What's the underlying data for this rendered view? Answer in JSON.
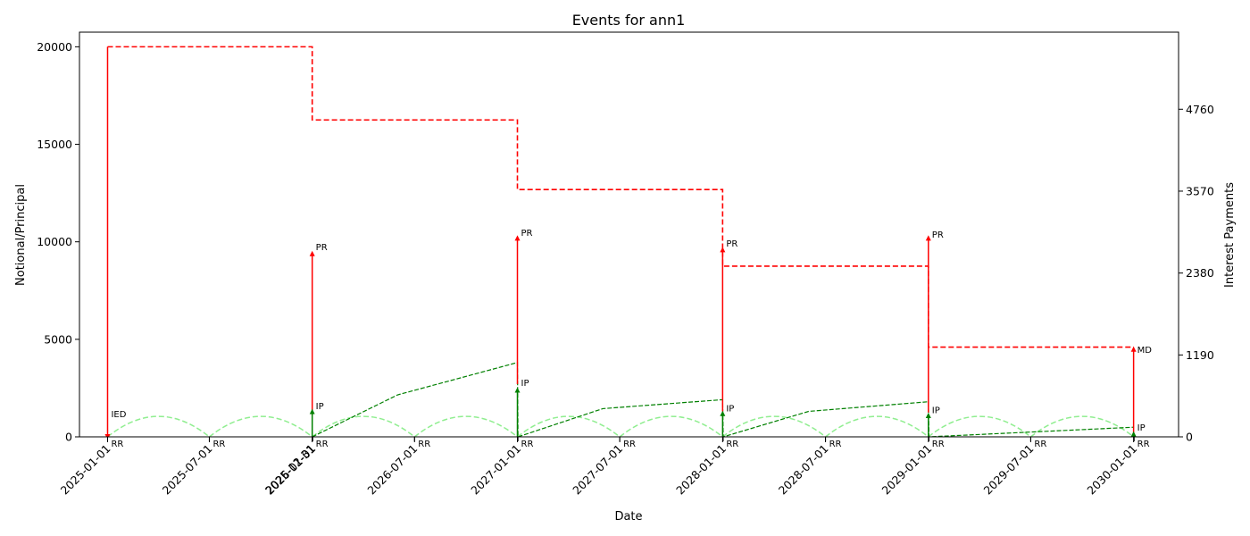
{
  "chart_data": {
    "type": "line",
    "title": "Events for ann1",
    "xlabel": "Date",
    "ylabel": "Notional/Principal",
    "y2label": "Interest Payments",
    "xlim": [
      "2024-11-12",
      "2030-03-21"
    ],
    "ylim": [
      0,
      20750
    ],
    "y2lim": [
      0,
      5880
    ],
    "y_ticks": [
      0,
      5000,
      10000,
      15000,
      20000
    ],
    "y2_ticks": [
      0,
      1190,
      2380,
      3570,
      4760
    ],
    "x_ticks": [
      "2025-01-01",
      "2025-07-01",
      "2025-12-31",
      "2026-01-01",
      "2026-07-01",
      "2027-01-01",
      "2027-07-01",
      "2028-01-01",
      "2028-07-01",
      "2029-01-01",
      "2029-07-01",
      "2030-01-01"
    ],
    "grid": false,
    "colors": {
      "notional": "#ff0000",
      "interest": "#008000",
      "rate_reset": "#90ee90"
    },
    "series": [
      {
        "key": "notional",
        "style": "dashed step",
        "points": [
          {
            "x": "2025-01-01",
            "y": 20000
          },
          {
            "x": "2025-12-31",
            "y": 16250
          },
          {
            "x": "2026-12-31",
            "y": 12680
          },
          {
            "x": "2027-12-31",
            "y": 8750
          },
          {
            "x": "2028-12-31",
            "y": 4600
          },
          {
            "x": "2029-12-31",
            "y": 4600
          }
        ]
      },
      {
        "key": "interest",
        "style": "dashed",
        "axis": "y2",
        "points": [
          {
            "x": "2025-12-31",
            "y": 0
          },
          {
            "x": "2026-06-01",
            "y": 610
          },
          {
            "x": "2026-12-31",
            "y": 1080
          },
          {
            "x": "2027-01-01",
            "y": 0
          },
          {
            "x": "2027-06-01",
            "y": 410
          },
          {
            "x": "2027-12-31",
            "y": 540
          },
          {
            "x": "2028-01-01",
            "y": 0
          },
          {
            "x": "2028-06-01",
            "y": 370
          },
          {
            "x": "2028-12-31",
            "y": 510
          },
          {
            "x": "2029-01-01",
            "y": 0
          },
          {
            "x": "2029-12-31",
            "y": 140
          }
        ]
      }
    ],
    "rate_reset_dates": [
      "2025-01-01",
      "2025-07-01",
      "2025-12-31",
      "2026-07-01",
      "2026-12-31",
      "2027-07-01",
      "2027-12-31",
      "2028-07-01",
      "2028-12-31",
      "2029-07-01",
      "2029-12-31"
    ],
    "rate_reset_arc_peak": 1050,
    "events": [
      {
        "type": "IED",
        "date": "2025-01-01",
        "from": 20000,
        "to": 0,
        "color": "#ff0000",
        "label": "IED",
        "label_y": 1200
      },
      {
        "type": "PR",
        "date": "2025-12-31",
        "from": 1100,
        "to": 9400,
        "color": "#ff0000",
        "label": "PR",
        "label_y": 9750
      },
      {
        "type": "IP",
        "date": "2025-12-31",
        "from": 0,
        "to": 1300,
        "color": "#008000",
        "label": "IP",
        "label_y": 1600
      },
      {
        "type": "PR",
        "date": "2026-12-31",
        "from": 2700,
        "to": 10200,
        "color": "#ff0000",
        "label": "PR",
        "label_y": 10500
      },
      {
        "type": "IP",
        "date": "2026-12-31",
        "from": 0,
        "to": 2400,
        "color": "#008000",
        "label": "IP",
        "label_y": 2800
      },
      {
        "type": "PR",
        "date": "2027-12-31",
        "from": 1300,
        "to": 9600,
        "color": "#ff0000",
        "label": "PR",
        "label_y": 9950
      },
      {
        "type": "IP",
        "date": "2027-12-31",
        "from": 0,
        "to": 1200,
        "color": "#008000",
        "label": "IP",
        "label_y": 1500
      },
      {
        "type": "PR",
        "date": "2028-12-31",
        "from": 1250,
        "to": 10200,
        "color": "#ff0000",
        "label": "PR",
        "label_y": 10400
      },
      {
        "type": "IP",
        "date": "2028-12-31",
        "from": 0,
        "to": 1100,
        "color": "#008000",
        "label": "IP",
        "label_y": 1400
      },
      {
        "type": "MD",
        "date": "2029-12-31",
        "from": 200,
        "to": 4500,
        "color": "#ff0000",
        "label": "MD",
        "label_y": 4500
      },
      {
        "type": "IP",
        "date": "2029-12-31",
        "from": 0,
        "to": 150,
        "color": "#008000",
        "label": "IP",
        "label_y": 500
      }
    ]
  }
}
